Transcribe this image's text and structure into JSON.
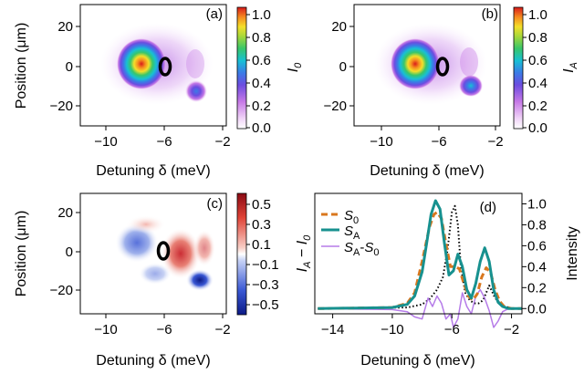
{
  "figure": {
    "xlabel": "Detuning δ (meV)",
    "ylabel": "Position (μm)"
  },
  "chart_data": [
    {
      "panel_label": "(a)",
      "type": "heatmap",
      "title": "",
      "xlabel": "Detuning δ (meV)",
      "ylabel": "Position (μm)",
      "xlim": [
        -11.5,
        -1.5
      ],
      "ylim": [
        -30,
        30
      ],
      "xticks": [
        -10,
        -6,
        -2
      ],
      "yticks": [
        20,
        0,
        -20
      ],
      "colorbar": {
        "label": "I_0",
        "range": [
          0,
          1.1
        ],
        "ticks": [
          "1.0",
          "0.8",
          "0.6",
          "0.4",
          "0.2",
          "0.0"
        ],
        "colormap": "white-purple-blue-cyan-green-yellow-red"
      },
      "features": [
        {
          "name": "main-lobe",
          "x": -6.9,
          "y": 0,
          "peak": 1.0
        },
        {
          "name": "side-lobe",
          "x": -3.6,
          "y": -15,
          "peak": 0.45
        },
        {
          "name": "ring-marker",
          "x": -5.5,
          "y": 0
        }
      ]
    },
    {
      "panel_label": "(b)",
      "type": "heatmap",
      "title": "",
      "xlabel": "Detuning δ (meV)",
      "ylabel": "",
      "xlim": [
        -11.5,
        -1.5
      ],
      "ylim": [
        -30,
        30
      ],
      "xticks": [
        -10,
        -6,
        -2
      ],
      "yticks": [
        20,
        0,
        -20
      ],
      "colorbar": {
        "label": "I_A",
        "range": [
          0,
          1.1
        ],
        "ticks": [
          "1.0",
          "0.8",
          "0.6",
          "0.4",
          "0.2",
          "0.0"
        ],
        "colormap": "white-purple-blue-cyan-green-yellow-red"
      },
      "features": [
        {
          "name": "main-lobe",
          "x": -6.9,
          "y": 0,
          "peak": 1.0
        },
        {
          "name": "side-lobe",
          "x": -3.5,
          "y": -13,
          "peak": 0.55
        },
        {
          "name": "ring-marker",
          "x": -5.5,
          "y": 0
        }
      ]
    },
    {
      "panel_label": "(c)",
      "type": "heatmap",
      "title": "",
      "xlabel": "Detuning δ (meV)",
      "ylabel": "Position (μm)",
      "xlim": [
        -11.5,
        -1.5
      ],
      "ylim": [
        -30,
        30
      ],
      "xticks": [
        -10,
        -6,
        -2
      ],
      "yticks": [
        20,
        0,
        -20
      ],
      "colorbar": {
        "label": "I_A − I_0",
        "range": [
          -0.6,
          0.6
        ],
        "ticks": [
          "0.5",
          "0.3",
          "0.1",
          "−0.1",
          "−0.3",
          "−0.5"
        ],
        "colormap": "blue-white-red"
      },
      "features": [
        {
          "name": "neg-left",
          "x": -7.2,
          "y": 3,
          "value": -0.25
        },
        {
          "name": "pos-right",
          "x": -4.2,
          "y": 0,
          "value": 0.4
        },
        {
          "name": "neg-bottom",
          "x": -3.4,
          "y": -16,
          "value": -0.55
        },
        {
          "name": "ring-marker",
          "x": -5.5,
          "y": 0
        }
      ]
    },
    {
      "panel_label": "(d)",
      "type": "line",
      "title": "",
      "xlabel": "Detuning δ (meV)",
      "ylabel": "Intensity",
      "xlim": [
        -15.2,
        -1.3
      ],
      "ylim": [
        -0.05,
        1.1
      ],
      "xticks": [
        -14,
        -10,
        -6,
        -2
      ],
      "yticks": [
        "1.0",
        "0.8",
        "0.6",
        "0.4",
        "0.2",
        "0.0"
      ],
      "legend": {
        "placement": "top-left",
        "entries": [
          "S0",
          "SA",
          "SA-S0"
        ]
      },
      "series": [
        {
          "name": "S0",
          "style": "dashed",
          "color": "#d9771e",
          "x": [
            -15,
            -10,
            -9,
            -8.5,
            -8,
            -7.5,
            -7.2,
            -7.0,
            -6.7,
            -6.4,
            -6.1,
            -5.8,
            -5.5,
            -5.2,
            -4.9,
            -4.6,
            -4.3,
            -4.0,
            -3.7,
            -3.4,
            -3.1,
            -2.8,
            -2.5,
            -2,
            -1.3
          ],
          "y": [
            0,
            0.01,
            0.05,
            0.15,
            0.45,
            0.78,
            0.9,
            0.92,
            0.86,
            0.62,
            0.4,
            0.4,
            0.38,
            0.24,
            0.12,
            0.08,
            0.14,
            0.3,
            0.39,
            0.34,
            0.18,
            0.07,
            0.02,
            0,
            0
          ]
        },
        {
          "name": "SA",
          "style": "solid",
          "color": "#17918f",
          "x": [
            -15,
            -10,
            -9,
            -8.5,
            -8,
            -7.7,
            -7.4,
            -7.1,
            -6.8,
            -6.5,
            -6.2,
            -5.9,
            -5.6,
            -5.3,
            -5.0,
            -4.7,
            -4.4,
            -4.1,
            -3.8,
            -3.5,
            -3.2,
            -2.9,
            -2.6,
            -2.2,
            -1.3
          ],
          "y": [
            0,
            0.01,
            0.04,
            0.12,
            0.35,
            0.62,
            0.9,
            1.03,
            0.95,
            0.62,
            0.32,
            0.36,
            0.52,
            0.4,
            0.18,
            0.1,
            0.24,
            0.45,
            0.58,
            0.45,
            0.18,
            0.06,
            0.02,
            0,
            0
          ]
        },
        {
          "name": "SA-S0",
          "style": "solid",
          "color": "#b57be8",
          "x": [
            -15,
            -10,
            -9,
            -8.5,
            -8,
            -7.6,
            -7.3,
            -7.0,
            -6.7,
            -6.4,
            -6.1,
            -5.9,
            -5.6,
            -5.3,
            -5.0,
            -4.7,
            -4.4,
            -4.1,
            -3.8,
            -3.5,
            -3.2,
            -2.9,
            -2.6,
            -2.2,
            -1.3
          ],
          "y": [
            0,
            -0.01,
            -0.03,
            -0.08,
            -0.1,
            0.1,
            0.02,
            0.12,
            0.05,
            -0.1,
            -0.05,
            -0.18,
            -0.1,
            0.15,
            0.02,
            -0.05,
            0.12,
            0.18,
            0.1,
            -0.02,
            -0.18,
            -0.12,
            -0.03,
            0,
            0
          ]
        },
        {
          "name": "",
          "style": "dotted",
          "color": "#000000",
          "x": [
            -15,
            -9,
            -8,
            -7.5,
            -7,
            -6.6,
            -6.3,
            -6.0,
            -5.8,
            -5.6,
            -5.4,
            -5.1,
            -4.8,
            -4.5,
            -4.2,
            -3.9,
            -3.5,
            -3.1,
            -2.6,
            -2,
            -1.3
          ],
          "y": [
            0,
            0.01,
            0.04,
            0.09,
            0.18,
            0.3,
            0.55,
            0.92,
            0.98,
            0.8,
            0.4,
            0.15,
            0.08,
            0.05,
            0.05,
            0.08,
            0.22,
            0.1,
            0.03,
            0,
            0
          ]
        }
      ]
    }
  ]
}
